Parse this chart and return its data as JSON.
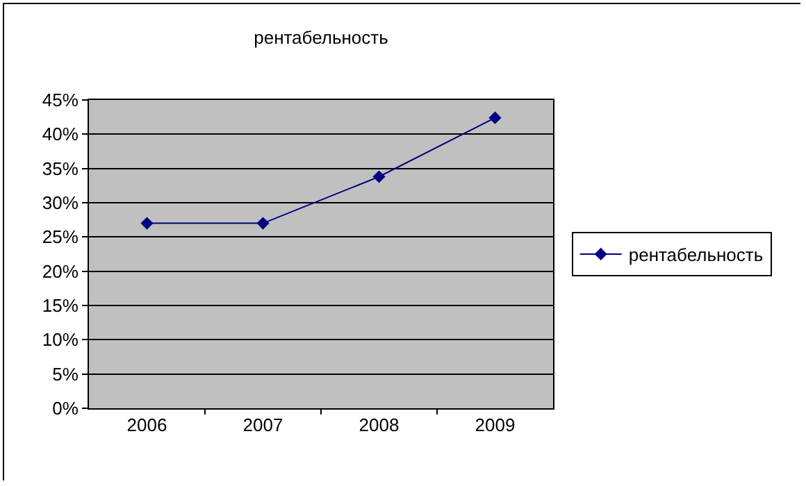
{
  "chart_data": {
    "type": "line",
    "title": "рентабельность",
    "categories": [
      "2006",
      "2007",
      "2008",
      "2009"
    ],
    "series": [
      {
        "name": "рентабельность",
        "color": "#000080",
        "values": [
          27,
          27,
          33.8,
          42.4
        ]
      }
    ],
    "ylim": [
      0,
      45
    ],
    "yticks": [
      {
        "value": 0,
        "label": "0%"
      },
      {
        "value": 5,
        "label": "5%"
      },
      {
        "value": 10,
        "label": "10%"
      },
      {
        "value": 15,
        "label": "15%"
      },
      {
        "value": 20,
        "label": "20%"
      },
      {
        "value": 25,
        "label": "25%"
      },
      {
        "value": 30,
        "label": "30%"
      },
      {
        "value": 35,
        "label": "35%"
      },
      {
        "value": 40,
        "label": "40%"
      },
      {
        "value": 45,
        "label": "45%"
      }
    ],
    "grid": "y",
    "legend": "right",
    "marker": "diamond",
    "line_style": "solid"
  }
}
